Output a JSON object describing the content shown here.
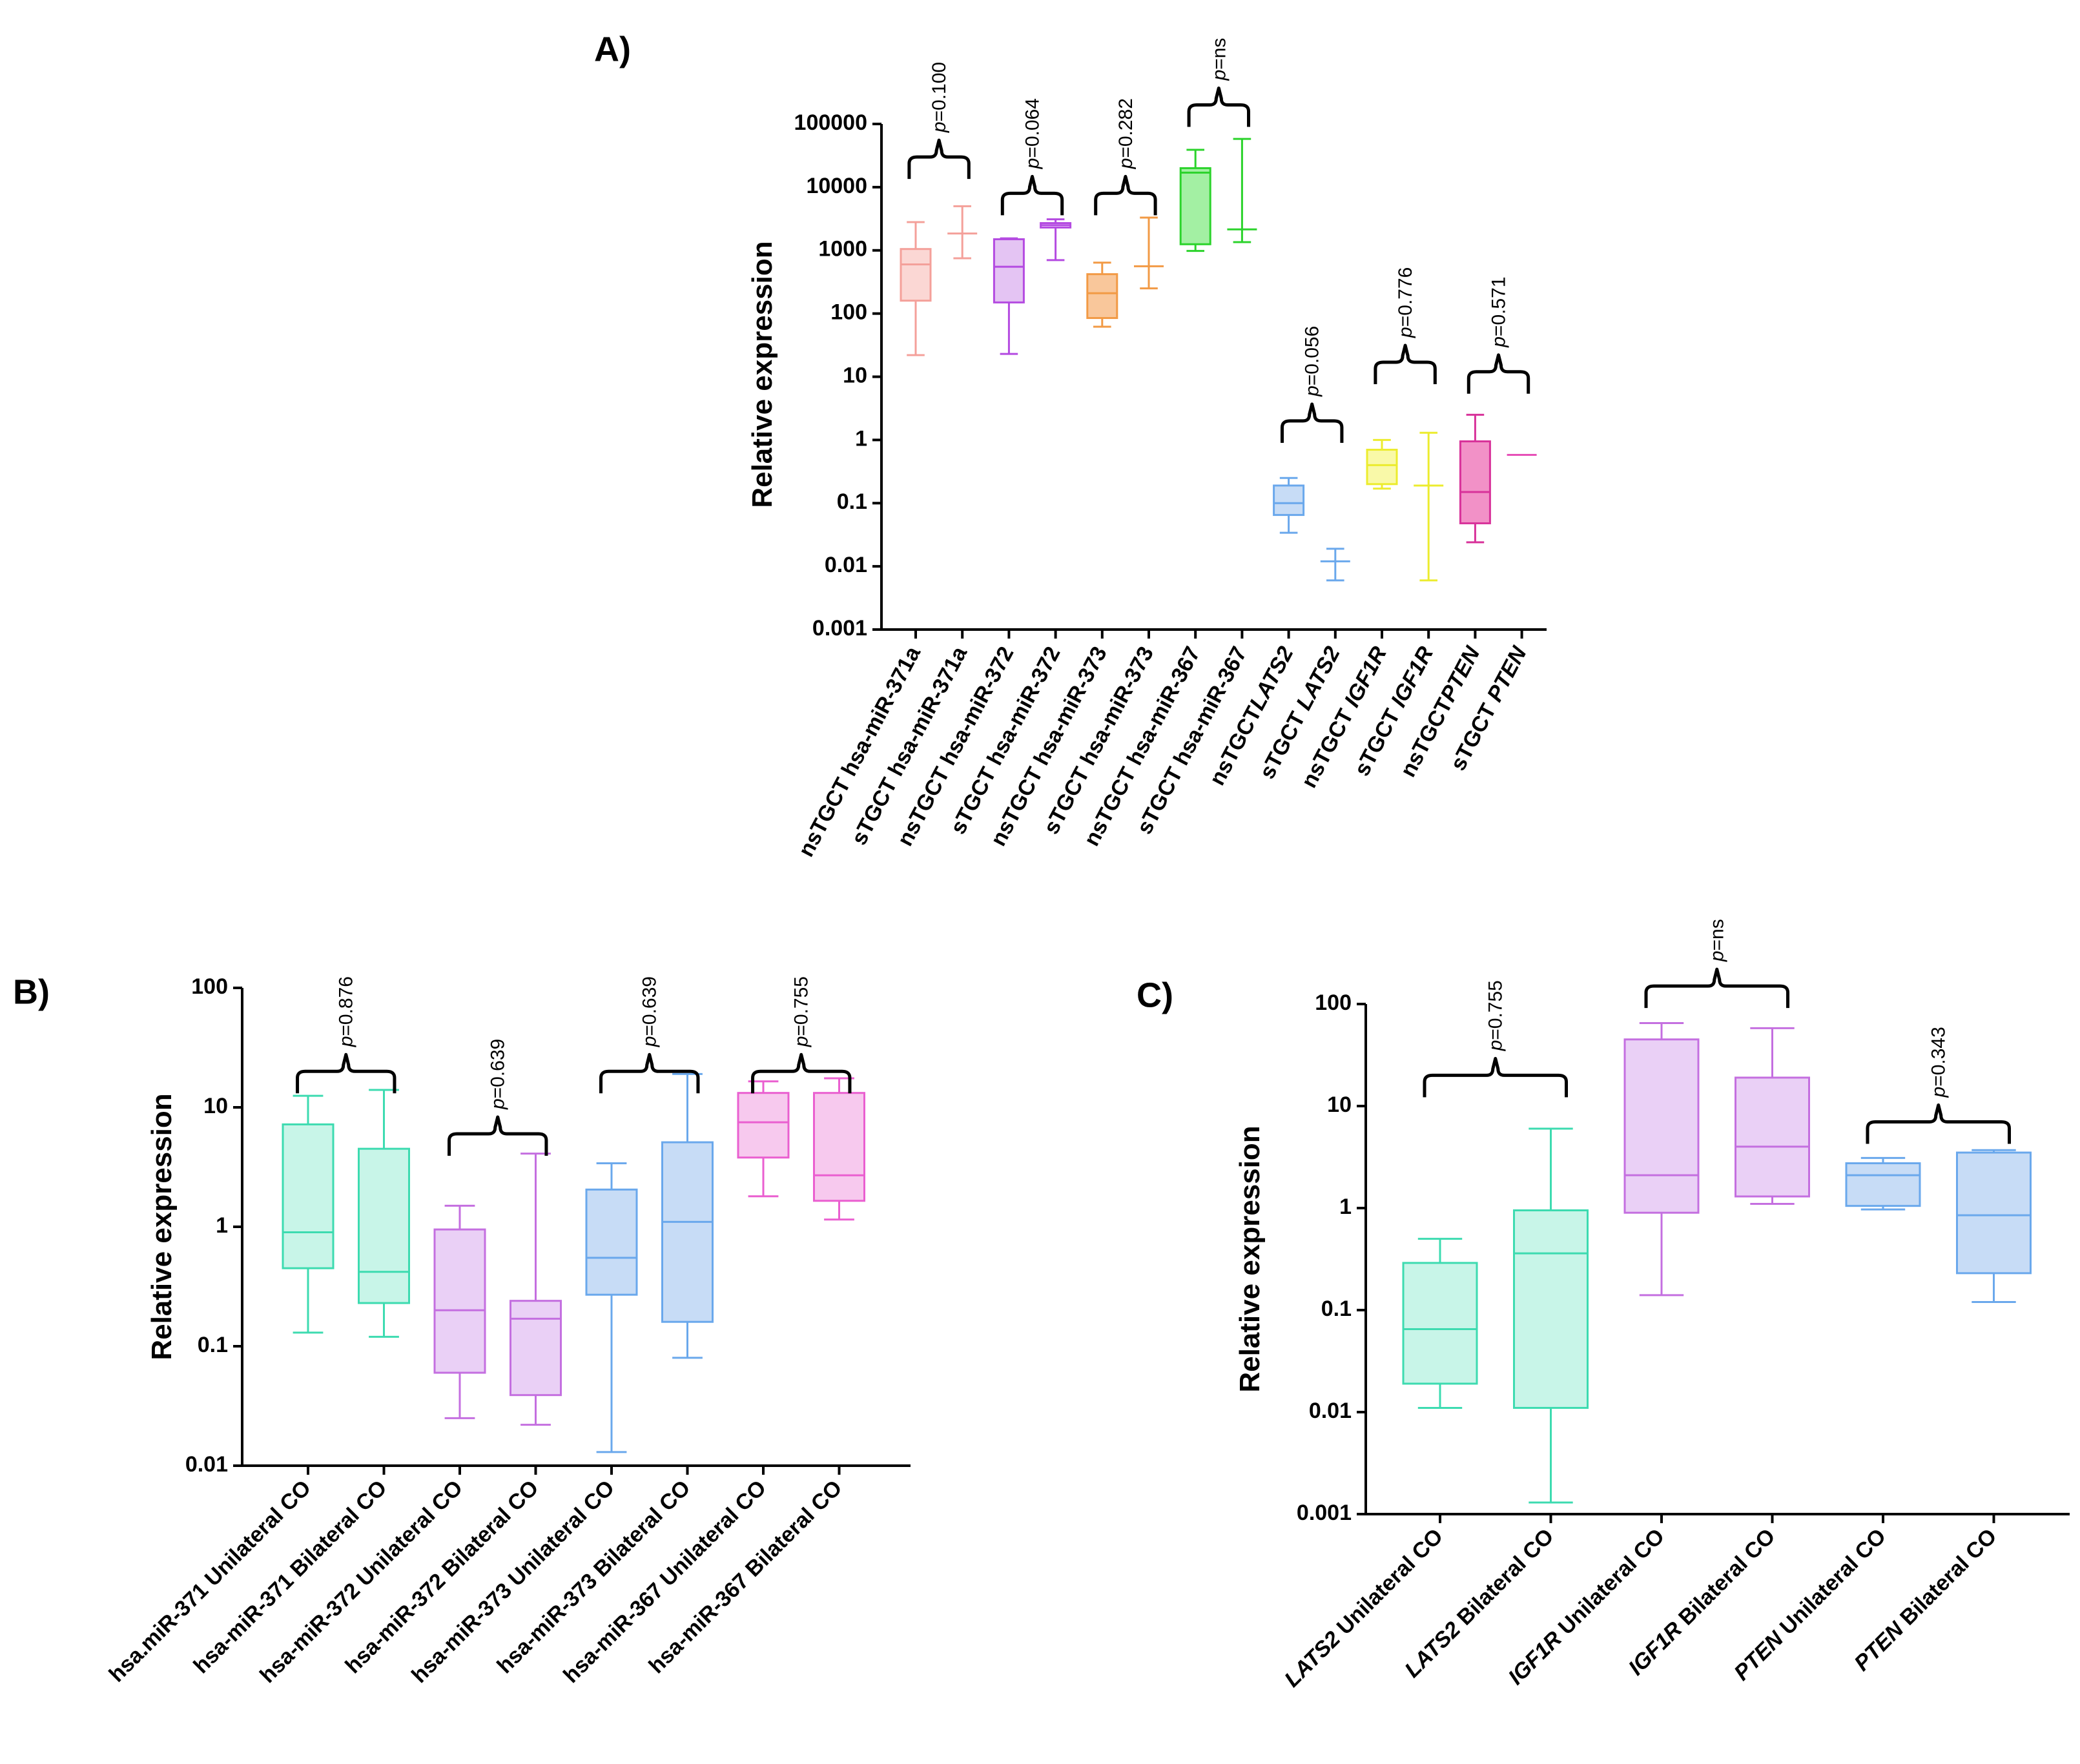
{
  "chart_data": [
    {
      "panel": "A)",
      "type": "boxplot",
      "scale": "log",
      "ylabel": "Relative expression",
      "ylim": [
        0.001,
        100000
      ],
      "yticks": [
        {
          "value": 0.001,
          "label": "0.001"
        },
        {
          "value": 0.01,
          "label": "0.01"
        },
        {
          "value": 0.1,
          "label": "0.1"
        },
        {
          "value": 1,
          "label": "1"
        },
        {
          "value": 10,
          "label": "10"
        },
        {
          "value": 100,
          "label": "100"
        },
        {
          "value": 1000,
          "label": "1000"
        },
        {
          "value": 10000,
          "label": "10000"
        },
        {
          "value": 100000,
          "label": "100000"
        }
      ],
      "categories": [
        {
          "pre": "nsTGCT ",
          "it": "",
          "post": "hsa-miR-371a"
        },
        {
          "pre": "sTGCT ",
          "it": "",
          "post": "hsa-miR-371a"
        },
        {
          "pre": "nsTGCT ",
          "it": "",
          "post": "hsa-miR-372"
        },
        {
          "pre": "sTGCT ",
          "it": "",
          "post": "hsa-miR-372"
        },
        {
          "pre": "nsTGCT ",
          "it": "",
          "post": "hsa-miR-373"
        },
        {
          "pre": "sTGCT ",
          "it": "",
          "post": "hsa-miR-373"
        },
        {
          "pre": "nsTGCT ",
          "it": "",
          "post": "hsa-miR-367"
        },
        {
          "pre": "sTGCT ",
          "it": "",
          "post": "hsa-miR-367"
        },
        {
          "pre": "nsTGCT",
          "it": "LATS2",
          "post": ""
        },
        {
          "pre": "sTGCT ",
          "it": "LATS2",
          "post": ""
        },
        {
          "pre": "nsTGCT ",
          "it": "IGF1R",
          "post": ""
        },
        {
          "pre": "sTGCT ",
          "it": "IGF1R",
          "post": ""
        },
        {
          "pre": "nsTGCT",
          "it": "PTEN",
          "post": ""
        },
        {
          "pre": "sTGCT ",
          "it": "PTEN",
          "post": ""
        }
      ],
      "boxes": [
        {
          "min": 22,
          "q1": 160,
          "median": 600,
          "q3": 1050,
          "max": 2800,
          "color": "#f4a09a",
          "fill": "#fbd7d4"
        },
        {
          "min": 750,
          "q1": 1850,
          "median": 1850,
          "q3": 1850,
          "max": 5000,
          "color": "#f4a09a",
          "fill": "none"
        },
        {
          "min": 23,
          "q1": 150,
          "median": 550,
          "q3": 1500,
          "max": 1550,
          "color": "#b44be1",
          "fill": "#e4c4f3"
        },
        {
          "min": 700,
          "q1": 2300,
          "median": 2500,
          "q3": 2700,
          "max": 3100,
          "color": "#b44be1",
          "fill": "none"
        },
        {
          "min": 62,
          "q1": 85,
          "median": 210,
          "q3": 420,
          "max": 640,
          "color": "#f29a45",
          "fill": "#f9c79b"
        },
        {
          "min": 250,
          "q1": 560,
          "median": 560,
          "q3": 560,
          "max": 3300,
          "color": "#f29a45",
          "fill": "none"
        },
        {
          "min": 980,
          "q1": 1250,
          "median": 17000,
          "q3": 20000,
          "max": 39000,
          "color": "#2bd32b",
          "fill": "#a3f0a3"
        },
        {
          "min": 1350,
          "q1": 2100,
          "median": 2150,
          "q3": 2200,
          "max": 58000,
          "color": "#2bd32b",
          "fill": "none"
        },
        {
          "min": 0.034,
          "q1": 0.065,
          "median": 0.1,
          "q3": 0.19,
          "max": 0.25,
          "color": "#6aa8ec",
          "fill": "#c7dcf6"
        },
        {
          "min": 0.006,
          "q1": 0.012,
          "median": 0.012,
          "q3": 0.012,
          "max": 0.019,
          "color": "#6aa8ec",
          "fill": "none"
        },
        {
          "min": 0.17,
          "q1": 0.2,
          "median": 0.4,
          "q3": 0.7,
          "max": 1.0,
          "color": "#ecec2e",
          "fill": "#f9f9a8"
        },
        {
          "min": 0.006,
          "q1": 0.19,
          "median": 0.19,
          "q3": 0.19,
          "max": 1.3,
          "color": "#ecec2e",
          "fill": "none"
        },
        {
          "min": 0.024,
          "q1": 0.048,
          "median": 0.15,
          "q3": 0.95,
          "max": 2.5,
          "color": "#d8329a",
          "fill": "#f291c7"
        },
        {
          "min": 0.58,
          "q1": 0.58,
          "median": 0.58,
          "q3": 0.58,
          "max": 0.58,
          "color": "#e64fb7",
          "fill": "none"
        }
      ],
      "pvalues": [
        {
          "left": 0,
          "right": 1,
          "brace_at": 30000,
          "text": "=0.100"
        },
        {
          "left": 2,
          "right": 3,
          "brace_at": 8000,
          "text": "=0.064"
        },
        {
          "left": 4,
          "right": 5,
          "brace_at": 8000,
          "text": "=0.282"
        },
        {
          "left": 6,
          "right": 7,
          "brace_at": 200000,
          "text": "=ns"
        },
        {
          "left": 8,
          "right": 9,
          "brace_at": 2.0,
          "text": "=0.056"
        },
        {
          "left": 10,
          "right": 11,
          "brace_at": 17,
          "text": "=0.776"
        },
        {
          "left": 12,
          "right": 13,
          "brace_at": 12,
          "text": "=0.571"
        }
      ]
    },
    {
      "panel": "B)",
      "type": "boxplot",
      "scale": "log",
      "ylabel": "Relative expression",
      "ylim": [
        0.01,
        100
      ],
      "yticks": [
        {
          "value": 0.01,
          "label": "0.01"
        },
        {
          "value": 0.1,
          "label": "0.1"
        },
        {
          "value": 1,
          "label": "1"
        },
        {
          "value": 10,
          "label": "10"
        },
        {
          "value": 100,
          "label": "100"
        }
      ],
      "categories": [
        {
          "pre": "hsa.miR-371 Unilateral CO",
          "it": "",
          "post": ""
        },
        {
          "pre": "hsa-miR-371 Bilateral CO",
          "it": "",
          "post": ""
        },
        {
          "pre": "hsa-miR-372 Unilateral CO",
          "it": "",
          "post": ""
        },
        {
          "pre": "hsa-miR-372 Bilateral CO",
          "it": "",
          "post": ""
        },
        {
          "pre": "hsa-miR-373 Unilateral CO",
          "it": "",
          "post": ""
        },
        {
          "pre": "hsa-miR-373 Bilateral CO",
          "it": "",
          "post": ""
        },
        {
          "pre": "hsa-miR-367 Unilateral CO",
          "it": "",
          "post": ""
        },
        {
          "pre": "hsa-miR-367 Bilateral CO",
          "it": "",
          "post": ""
        }
      ],
      "boxes": [
        {
          "min": 0.13,
          "q1": 0.45,
          "median": 0.9,
          "q3": 7.2,
          "max": 12.5,
          "color": "#3ddbb0",
          "fill": "#c8f5e8"
        },
        {
          "min": 0.12,
          "q1": 0.23,
          "median": 0.42,
          "q3": 4.5,
          "max": 14,
          "color": "#3ddbb0",
          "fill": "#c8f5e8"
        },
        {
          "min": 0.025,
          "q1": 0.06,
          "median": 0.2,
          "q3": 0.95,
          "max": 1.5,
          "color": "#c46fe0",
          "fill": "#ead0f6"
        },
        {
          "min": 0.022,
          "q1": 0.039,
          "median": 0.17,
          "q3": 0.24,
          "max": 4.1,
          "color": "#c46fe0",
          "fill": "#ead0f6"
        },
        {
          "min": 0.013,
          "q1": 0.27,
          "median": 0.55,
          "q3": 2.05,
          "max": 3.4,
          "color": "#6aa8ec",
          "fill": "#c7dcf6"
        },
        {
          "min": 0.08,
          "q1": 0.16,
          "median": 1.1,
          "q3": 5.1,
          "max": 19,
          "color": "#6aa8ec",
          "fill": "#c7dcf6"
        },
        {
          "min": 1.8,
          "q1": 3.8,
          "median": 7.5,
          "q3": 13.2,
          "max": 16.5,
          "color": "#ea5fd0",
          "fill": "#f7c9ee"
        },
        {
          "min": 1.15,
          "q1": 1.65,
          "median": 2.7,
          "q3": 13.2,
          "max": 17.5,
          "color": "#ea5fd0",
          "fill": "#f7c9ee"
        }
      ],
      "pvalues": [
        {
          "left": 0,
          "right": 1,
          "brace_at": 20,
          "text": "=0.876"
        },
        {
          "left": 2,
          "right": 3,
          "brace_at": 6,
          "text": "=0.639"
        },
        {
          "left": 4,
          "right": 5,
          "brace_at": 20,
          "text": "=0.639"
        },
        {
          "left": 6,
          "right": 7,
          "brace_at": 20,
          "text": "=0.755"
        }
      ]
    },
    {
      "panel": "C)",
      "type": "boxplot",
      "scale": "log",
      "ylabel": "Relative expression",
      "ylim": [
        0.001,
        100
      ],
      "yticks": [
        {
          "value": 0.001,
          "label": "0.001"
        },
        {
          "value": 0.01,
          "label": "0.01"
        },
        {
          "value": 0.1,
          "label": "0.1"
        },
        {
          "value": 1,
          "label": "1"
        },
        {
          "value": 10,
          "label": "10"
        },
        {
          "value": 100,
          "label": "100"
        }
      ],
      "categories": [
        {
          "pre": "",
          "it": "LATS2",
          "post": " Unilateral CO"
        },
        {
          "pre": "",
          "it": "LATS2",
          "post": " Bilateral CO"
        },
        {
          "pre": "",
          "it": "IGF1R",
          "post": " Unilateral CO"
        },
        {
          "pre": "",
          "it": "IGF1R",
          "post": " Bilateral CO"
        },
        {
          "pre": "",
          "it": "PTEN",
          "post": " Unilateral CO"
        },
        {
          "pre": "",
          "it": "PTEN",
          "post": " Bilateral CO"
        }
      ],
      "boxes": [
        {
          "min": 0.011,
          "q1": 0.019,
          "median": 0.065,
          "q3": 0.29,
          "max": 0.5,
          "color": "#3ddbb0",
          "fill": "#c8f5e8"
        },
        {
          "min": 0.0013,
          "q1": 0.011,
          "median": 0.36,
          "q3": 0.95,
          "max": 6,
          "color": "#3ddbb0",
          "fill": "#c8f5e8"
        },
        {
          "min": 0.14,
          "q1": 0.9,
          "median": 2.1,
          "q3": 45,
          "max": 65,
          "color": "#c46fe0",
          "fill": "#ead0f6"
        },
        {
          "min": 1.1,
          "q1": 1.3,
          "median": 4,
          "q3": 19,
          "max": 58,
          "color": "#c46fe0",
          "fill": "#ead0f6"
        },
        {
          "min": 0.97,
          "q1": 1.05,
          "median": 2.1,
          "q3": 2.75,
          "max": 3.1,
          "color": "#6aa8ec",
          "fill": "#c7dcf6"
        },
        {
          "min": 0.12,
          "q1": 0.23,
          "median": 0.85,
          "q3": 3.5,
          "max": 3.7,
          "color": "#6aa8ec",
          "fill": "#c7dcf6"
        }
      ],
      "pvalues": [
        {
          "left": 0,
          "right": 1,
          "brace_at": 20,
          "text": "=0.755"
        },
        {
          "left": 2,
          "right": 3,
          "brace_at": 150,
          "text": "=ns"
        },
        {
          "left": 4,
          "right": 5,
          "brace_at": 7,
          "text": "=0.343"
        }
      ]
    }
  ]
}
